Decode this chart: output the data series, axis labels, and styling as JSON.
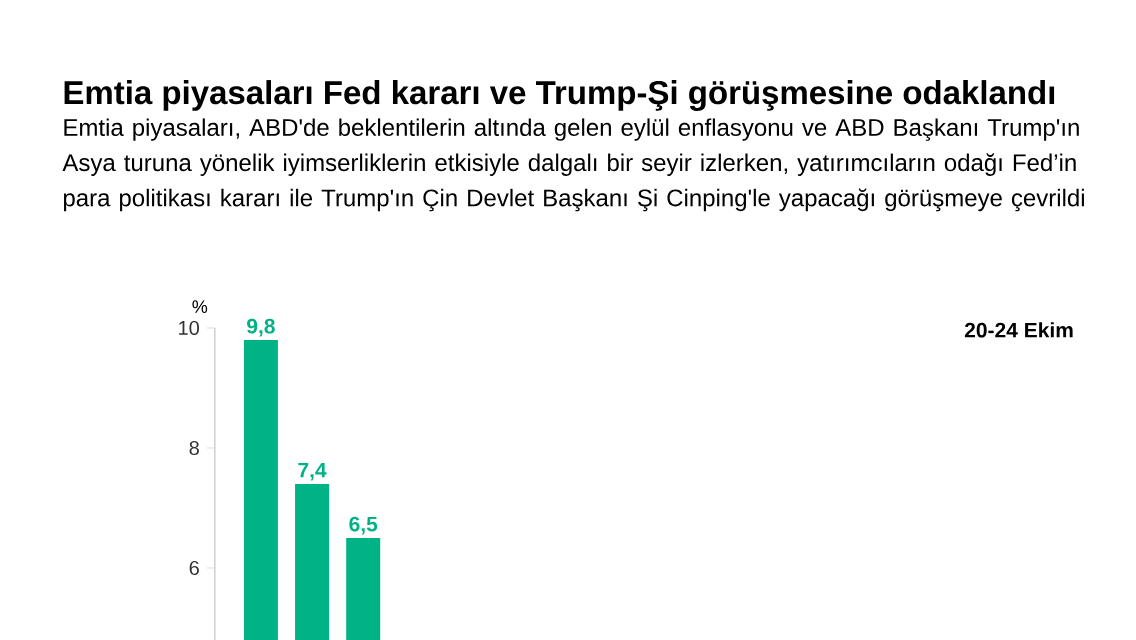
{
  "chart_data": {
    "type": "bar",
    "title": "Emtia piyasaları Fed kararı ve Trump-Şi görüşmesine odaklandı",
    "subtitle": "Emtia piyasaları, ABD'de beklentilerin altında gelen eylül enflasyonu ve ABD Başkanı Trump'ın Asya turuna yönelik iyimserliklerin etkisiyle dalgalı bir seyir izlerken, yatırımcıların odağı Fed’in para politikası kararı ile Trump'ın Çin Devlet Başkanı Şi Cinping'le yapacağı görüşmeye çevrildi",
    "ylabel": "%",
    "annotations": [
      "20-24 Ekim"
    ],
    "categories": [
      null,
      null,
      null
    ],
    "values": [
      9.8,
      7.4,
      6.5
    ],
    "value_labels": [
      "9,8",
      "7,4",
      "6,5"
    ],
    "color": "#00b386",
    "ylim": [
      4.8,
      10
    ],
    "yticks": [
      6,
      8,
      10
    ]
  }
}
